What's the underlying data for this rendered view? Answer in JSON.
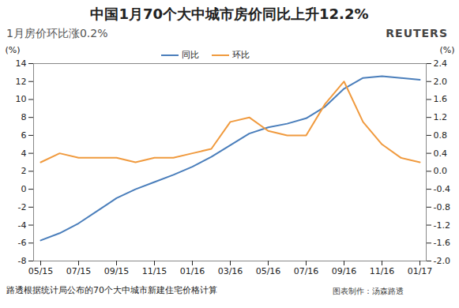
{
  "chart_data": {
    "type": "line",
    "title": "中国1月70个大中城市房价同比上升12.2%",
    "subtitle": "1月房价环比涨0.2%",
    "logo": "REUTERS",
    "caption": "路透根据统计局公布的70个大中城市新建住宅价格计算",
    "credit": "图表制作：汤森路透",
    "categories": [
      "05/15",
      null,
      "07/15",
      null,
      "09/15",
      null,
      "11/15",
      null,
      "01/16",
      null,
      "03/16",
      null,
      "05/16",
      null,
      "07/16",
      null,
      "09/16",
      null,
      "11/16",
      null,
      "01/17"
    ],
    "ylabel": "(%)",
    "y2label": "(%)",
    "ylim": [
      -8,
      14
    ],
    "yticks": [
      -8,
      -6,
      -4,
      -2,
      0,
      2,
      4,
      6,
      8,
      10,
      12,
      14
    ],
    "y2lim": [
      -2,
      2.4
    ],
    "y2ticks": [
      {
        "value": -2,
        "label": "-2.0"
      },
      -1.6,
      -1.2,
      -0.8,
      -0.4,
      {
        "value": 0,
        "label": "0.0"
      },
      0.4,
      0.8,
      1.2,
      1.6,
      {
        "value": 2,
        "label": "2.0"
      },
      2.4
    ],
    "legend": "top",
    "series": [
      {
        "name": "同比",
        "color": "#4a7ebb",
        "values": [
          -5.7,
          -4.9,
          -3.8,
          -2.4,
          -1.0,
          0.0,
          0.8,
          1.6,
          2.5,
          3.6,
          4.9,
          6.2,
          6.9,
          7.3,
          7.9,
          9.2,
          11.2,
          12.4,
          12.6,
          12.4,
          12.2
        ]
      },
      {
        "name": "环比",
        "color": "#f09a3e",
        "axis": "y2",
        "values": [
          0.2,
          0.4,
          0.3,
          0.3,
          0.3,
          0.2,
          0.3,
          0.3,
          0.4,
          0.5,
          1.1,
          1.2,
          0.9,
          0.8,
          0.8,
          1.5,
          2.0,
          1.1,
          0.6,
          0.3,
          0.2
        ]
      }
    ]
  }
}
